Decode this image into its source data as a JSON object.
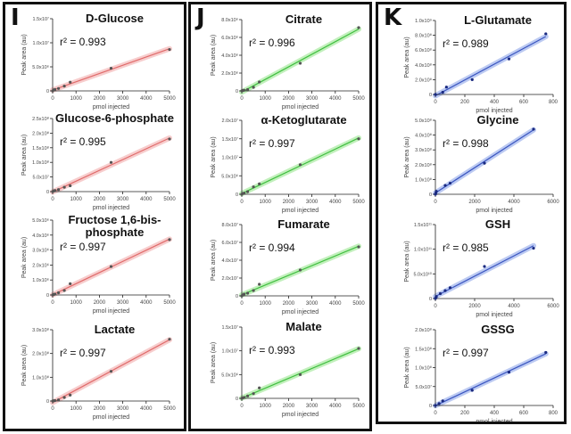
{
  "panels": [
    {
      "letter": "I",
      "color": "#e06a6a",
      "band": "#f4b8b8"
    },
    {
      "letter": "J",
      "color": "#3fbf3f",
      "band": "#a8eaa0"
    },
    {
      "letter": "K",
      "color": "#3a55c0",
      "band": "#9fb3ec"
    }
  ],
  "chart_data": [
    {
      "type": "scatter",
      "panel": 0,
      "title": "D-Glucose",
      "r2": "r² = 0.993",
      "xlabel": "pmol injected",
      "ylabel": "Peak area (au)",
      "xlim": [
        0,
        5000
      ],
      "xticks": [
        0,
        1000,
        2000,
        3000,
        4000,
        5000
      ],
      "ylim": [
        0,
        15000000
      ],
      "yticks": [
        {
          "v": 0,
          "l": "0"
        },
        {
          "v": 5000000,
          "l": "5.0x10⁶"
        },
        {
          "v": 10000000,
          "l": "1.0x10⁷"
        },
        {
          "v": 15000000,
          "l": "1.5x10⁷"
        }
      ],
      "x": [
        0,
        50,
        100,
        250,
        500,
        750,
        2500,
        5000
      ],
      "y": [
        0,
        200000,
        300000,
        500000,
        1000000,
        1800000,
        4700000,
        8600000
      ]
    },
    {
      "type": "scatter",
      "panel": 0,
      "title": "Glucose-6-phosphate",
      "r2": "r² = 0.995",
      "xlabel": "pmol injected",
      "ylabel": "Peak area (au)",
      "xlim": [
        0,
        5000
      ],
      "xticks": [
        0,
        1000,
        2000,
        3000,
        4000,
        5000
      ],
      "ylim": [
        0,
        250000000
      ],
      "yticks": [
        {
          "v": 0,
          "l": "0"
        },
        {
          "v": 50000000,
          "l": "5.0x10⁷"
        },
        {
          "v": 100000000,
          "l": "1.0x10⁸"
        },
        {
          "v": 150000000,
          "l": "1.5x10⁸"
        },
        {
          "v": 200000000,
          "l": "2.0x10⁸"
        },
        {
          "v": 250000000,
          "l": "2.5x10⁸"
        }
      ],
      "x": [
        0,
        50,
        100,
        250,
        500,
        750,
        2500,
        5000
      ],
      "y": [
        0,
        2000000,
        4000000,
        7000000,
        15000000,
        20000000,
        100000000,
        180000000
      ]
    },
    {
      "type": "scatter",
      "panel": 0,
      "title": "Fructose 1,6-bis-\nphosphate",
      "r2": "r² = 0.997",
      "xlabel": "pmol injected",
      "ylabel": "Peak area (au)",
      "xlim": [
        0,
        5000
      ],
      "xticks": [
        0,
        1000,
        2000,
        3000,
        4000,
        5000
      ],
      "ylim": [
        0,
        5000000
      ],
      "yticks": [
        {
          "v": 0,
          "l": "0"
        },
        {
          "v": 1000000,
          "l": "1.0x10⁶"
        },
        {
          "v": 2000000,
          "l": "2.0x10⁶"
        },
        {
          "v": 3000000,
          "l": "3.0x10⁶"
        },
        {
          "v": 4000000,
          "l": "4.0x10⁶"
        },
        {
          "v": 5000000,
          "l": "5.0x10⁶"
        }
      ],
      "x": [
        0,
        50,
        100,
        250,
        500,
        750,
        2500,
        5000
      ],
      "y": [
        0,
        30000,
        60000,
        150000,
        300000,
        750000,
        1900000,
        3700000
      ]
    },
    {
      "type": "scatter",
      "panel": 0,
      "title": "Lactate",
      "r2": "r² = 0.997",
      "xlabel": "pmol injected",
      "ylabel": "Peak area (au)",
      "xlim": [
        0,
        5000
      ],
      "xticks": [
        0,
        1000,
        2000,
        3000,
        4000,
        5000
      ],
      "ylim": [
        0,
        300000000
      ],
      "yticks": [
        {
          "v": 0,
          "l": "0"
        },
        {
          "v": 100000000,
          "l": "1.0x10⁸"
        },
        {
          "v": 200000000,
          "l": "2.0x10⁸"
        },
        {
          "v": 300000000,
          "l": "3.0x10⁸"
        }
      ],
      "x": [
        0,
        50,
        100,
        250,
        500,
        750,
        2500,
        5000
      ],
      "y": [
        0,
        1000000,
        2000000,
        5000000,
        15000000,
        25000000,
        125000000,
        260000000
      ]
    },
    {
      "type": "scatter",
      "panel": 1,
      "title": "Citrate",
      "r2": "r² = 0.996",
      "xlabel": "pmol injected",
      "ylabel": "Peak area (au)",
      "xlim": [
        0,
        5000
      ],
      "xticks": [
        0,
        1000,
        2000,
        3000,
        4000,
        5000
      ],
      "ylim": [
        0,
        8000000
      ],
      "yticks": [
        {
          "v": 0,
          "l": "0"
        },
        {
          "v": 2000000,
          "l": "2.0x10⁶"
        },
        {
          "v": 4000000,
          "l": "4.0x10⁶"
        },
        {
          "v": 6000000,
          "l": "6.0x10⁶"
        },
        {
          "v": 8000000,
          "l": "8.0x10⁶"
        }
      ],
      "x": [
        0,
        50,
        100,
        250,
        500,
        750,
        2500,
        5000
      ],
      "y": [
        0,
        50000,
        80000,
        150000,
        400000,
        1000000,
        3100000,
        7100000
      ]
    },
    {
      "type": "scatter",
      "panel": 1,
      "title": "α-Ketoglutarate",
      "r2": "r² = 0.997",
      "xlabel": "pmol injected",
      "ylabel": "Peak area (au)",
      "xlim": [
        0,
        5000
      ],
      "xticks": [
        0,
        1000,
        2000,
        3000,
        4000,
        5000
      ],
      "ylim": [
        0,
        20000000
      ],
      "yticks": [
        {
          "v": 0,
          "l": "0"
        },
        {
          "v": 5000000,
          "l": "5.0x10⁶"
        },
        {
          "v": 10000000,
          "l": "1.0x10⁷"
        },
        {
          "v": 15000000,
          "l": "1.5x10⁷"
        },
        {
          "v": 20000000,
          "l": "2.0x10⁷"
        }
      ],
      "x": [
        0,
        50,
        100,
        250,
        500,
        750,
        2500,
        5000
      ],
      "y": [
        0,
        200000,
        300000,
        700000,
        2000000,
        2800000,
        8000000,
        15000000
      ]
    },
    {
      "type": "scatter",
      "panel": 1,
      "title": "Fumarate",
      "r2": "r² = 0.994",
      "xlabel": "pmol injected",
      "ylabel": "Peak area (au)",
      "xlim": [
        0,
        5000
      ],
      "xticks": [
        0,
        1000,
        2000,
        3000,
        4000,
        5000
      ],
      "ylim": [
        0,
        80000000
      ],
      "yticks": [
        {
          "v": 0,
          "l": "0"
        },
        {
          "v": 20000000,
          "l": "2.0x10⁷"
        },
        {
          "v": 40000000,
          "l": "4.0x10⁷"
        },
        {
          "v": 60000000,
          "l": "6.0x10⁷"
        },
        {
          "v": 80000000,
          "l": "8.0x10⁷"
        }
      ],
      "x": [
        0,
        50,
        100,
        250,
        500,
        750,
        2500,
        5000
      ],
      "y": [
        0,
        1000000,
        2000000,
        3000000,
        6000000,
        13000000,
        29000000,
        55000000
      ]
    },
    {
      "type": "scatter",
      "panel": 1,
      "title": "Malate",
      "r2": "r² = 0.993",
      "xlabel": "pmol injected",
      "ylabel": "Peak area (au)",
      "xlim": [
        0,
        5000
      ],
      "xticks": [
        0,
        1000,
        2000,
        3000,
        4000,
        5000
      ],
      "ylim": [
        0,
        15000000
      ],
      "yticks": [
        {
          "v": 0,
          "l": "0"
        },
        {
          "v": 5000000,
          "l": "5.0x10⁶"
        },
        {
          "v": 10000000,
          "l": "1.0x10⁷"
        },
        {
          "v": 15000000,
          "l": "1.5x10⁷"
        }
      ],
      "x": [
        0,
        50,
        100,
        250,
        500,
        750,
        2500,
        5000
      ],
      "y": [
        0,
        100000,
        200000,
        500000,
        1000000,
        2200000,
        5000000,
        10500000
      ]
    },
    {
      "type": "scatter",
      "panel": 2,
      "title": "L-Glutamate",
      "r2": "r² = 0.989",
      "xlabel": "pmol injected",
      "ylabel": "Peak area (au)",
      "xlim": [
        0,
        800
      ],
      "xticks": [
        0,
        200,
        400,
        600,
        800
      ],
      "ylim": [
        0,
        1000000000
      ],
      "yticks": [
        {
          "v": 0,
          "l": "0"
        },
        {
          "v": 200000000,
          "l": "2.0x10⁸"
        },
        {
          "v": 400000000,
          "l": "4.0x10⁸"
        },
        {
          "v": 600000000,
          "l": "6.0x10⁸"
        },
        {
          "v": 800000000,
          "l": "8.0x10⁸"
        },
        {
          "v": 1000000000,
          "l": "1.0x10⁹"
        }
      ],
      "x": [
        0,
        50,
        75,
        250,
        500,
        750
      ],
      "y": [
        0,
        30000000,
        100000000,
        200000000,
        480000000,
        820000000
      ]
    },
    {
      "type": "scatter",
      "panel": 2,
      "title": "Glycine",
      "r2": "r² = 0.998",
      "xlabel": "pmol injected",
      "ylabel": "Peak area (au)",
      "xlim": [
        0,
        6000
      ],
      "xticks": [
        0,
        2000,
        4000,
        6000
      ],
      "ylim": [
        0,
        500000000
      ],
      "yticks": [
        {
          "v": 0,
          "l": "0"
        },
        {
          "v": 100000000,
          "l": "1.0x10⁸"
        },
        {
          "v": 200000000,
          "l": "2.0x10⁸"
        },
        {
          "v": 300000000,
          "l": "3.0x10⁸"
        },
        {
          "v": 400000000,
          "l": "4.0x10⁸"
        },
        {
          "v": 500000000,
          "l": "5.0x10⁸"
        }
      ],
      "x": [
        0,
        25,
        50,
        500,
        750,
        2500,
        5000
      ],
      "y": [
        0,
        10000000,
        20000000,
        60000000,
        75000000,
        210000000,
        440000000
      ]
    },
    {
      "type": "scatter",
      "panel": 2,
      "title": "GSH",
      "r2": "r² = 0.985",
      "xlabel": "pmol injected",
      "ylabel": "Peak area (au)",
      "xlim": [
        0,
        6000
      ],
      "xticks": [
        0,
        2000,
        4000,
        6000
      ],
      "ylim": [
        0,
        150000000000
      ],
      "yticks": [
        {
          "v": 0,
          "l": "0"
        },
        {
          "v": 50000000000,
          "l": "5.0x10¹⁰"
        },
        {
          "v": 100000000000,
          "l": "1.0x10¹¹"
        },
        {
          "v": 150000000000,
          "l": "1.5x10¹¹"
        }
      ],
      "x": [
        0,
        25,
        50,
        250,
        500,
        750,
        2500,
        5000
      ],
      "y": [
        0,
        2000000000,
        4000000000,
        10000000000,
        16000000000,
        22000000000,
        65000000000,
        102000000000
      ]
    },
    {
      "type": "scatter",
      "panel": 2,
      "title": "GSSG",
      "r2": "r² = 0.997",
      "xlabel": "pmol injected",
      "ylabel": "Peak area (au)",
      "xlim": [
        0,
        800
      ],
      "xticks": [
        0,
        200,
        400,
        600,
        800
      ],
      "ylim": [
        0,
        200000000
      ],
      "yticks": [
        {
          "v": 0,
          "l": "0"
        },
        {
          "v": 50000000,
          "l": "5.0x10⁷"
        },
        {
          "v": 100000000,
          "l": "1.0x10⁸"
        },
        {
          "v": 150000000,
          "l": "1.5x10⁸"
        },
        {
          "v": 200000000,
          "l": "2.0x10⁸"
        }
      ],
      "x": [
        0,
        25,
        50,
        250,
        500,
        750
      ],
      "y": [
        0,
        5000000,
        12000000,
        40000000,
        88000000,
        140000000
      ]
    }
  ]
}
